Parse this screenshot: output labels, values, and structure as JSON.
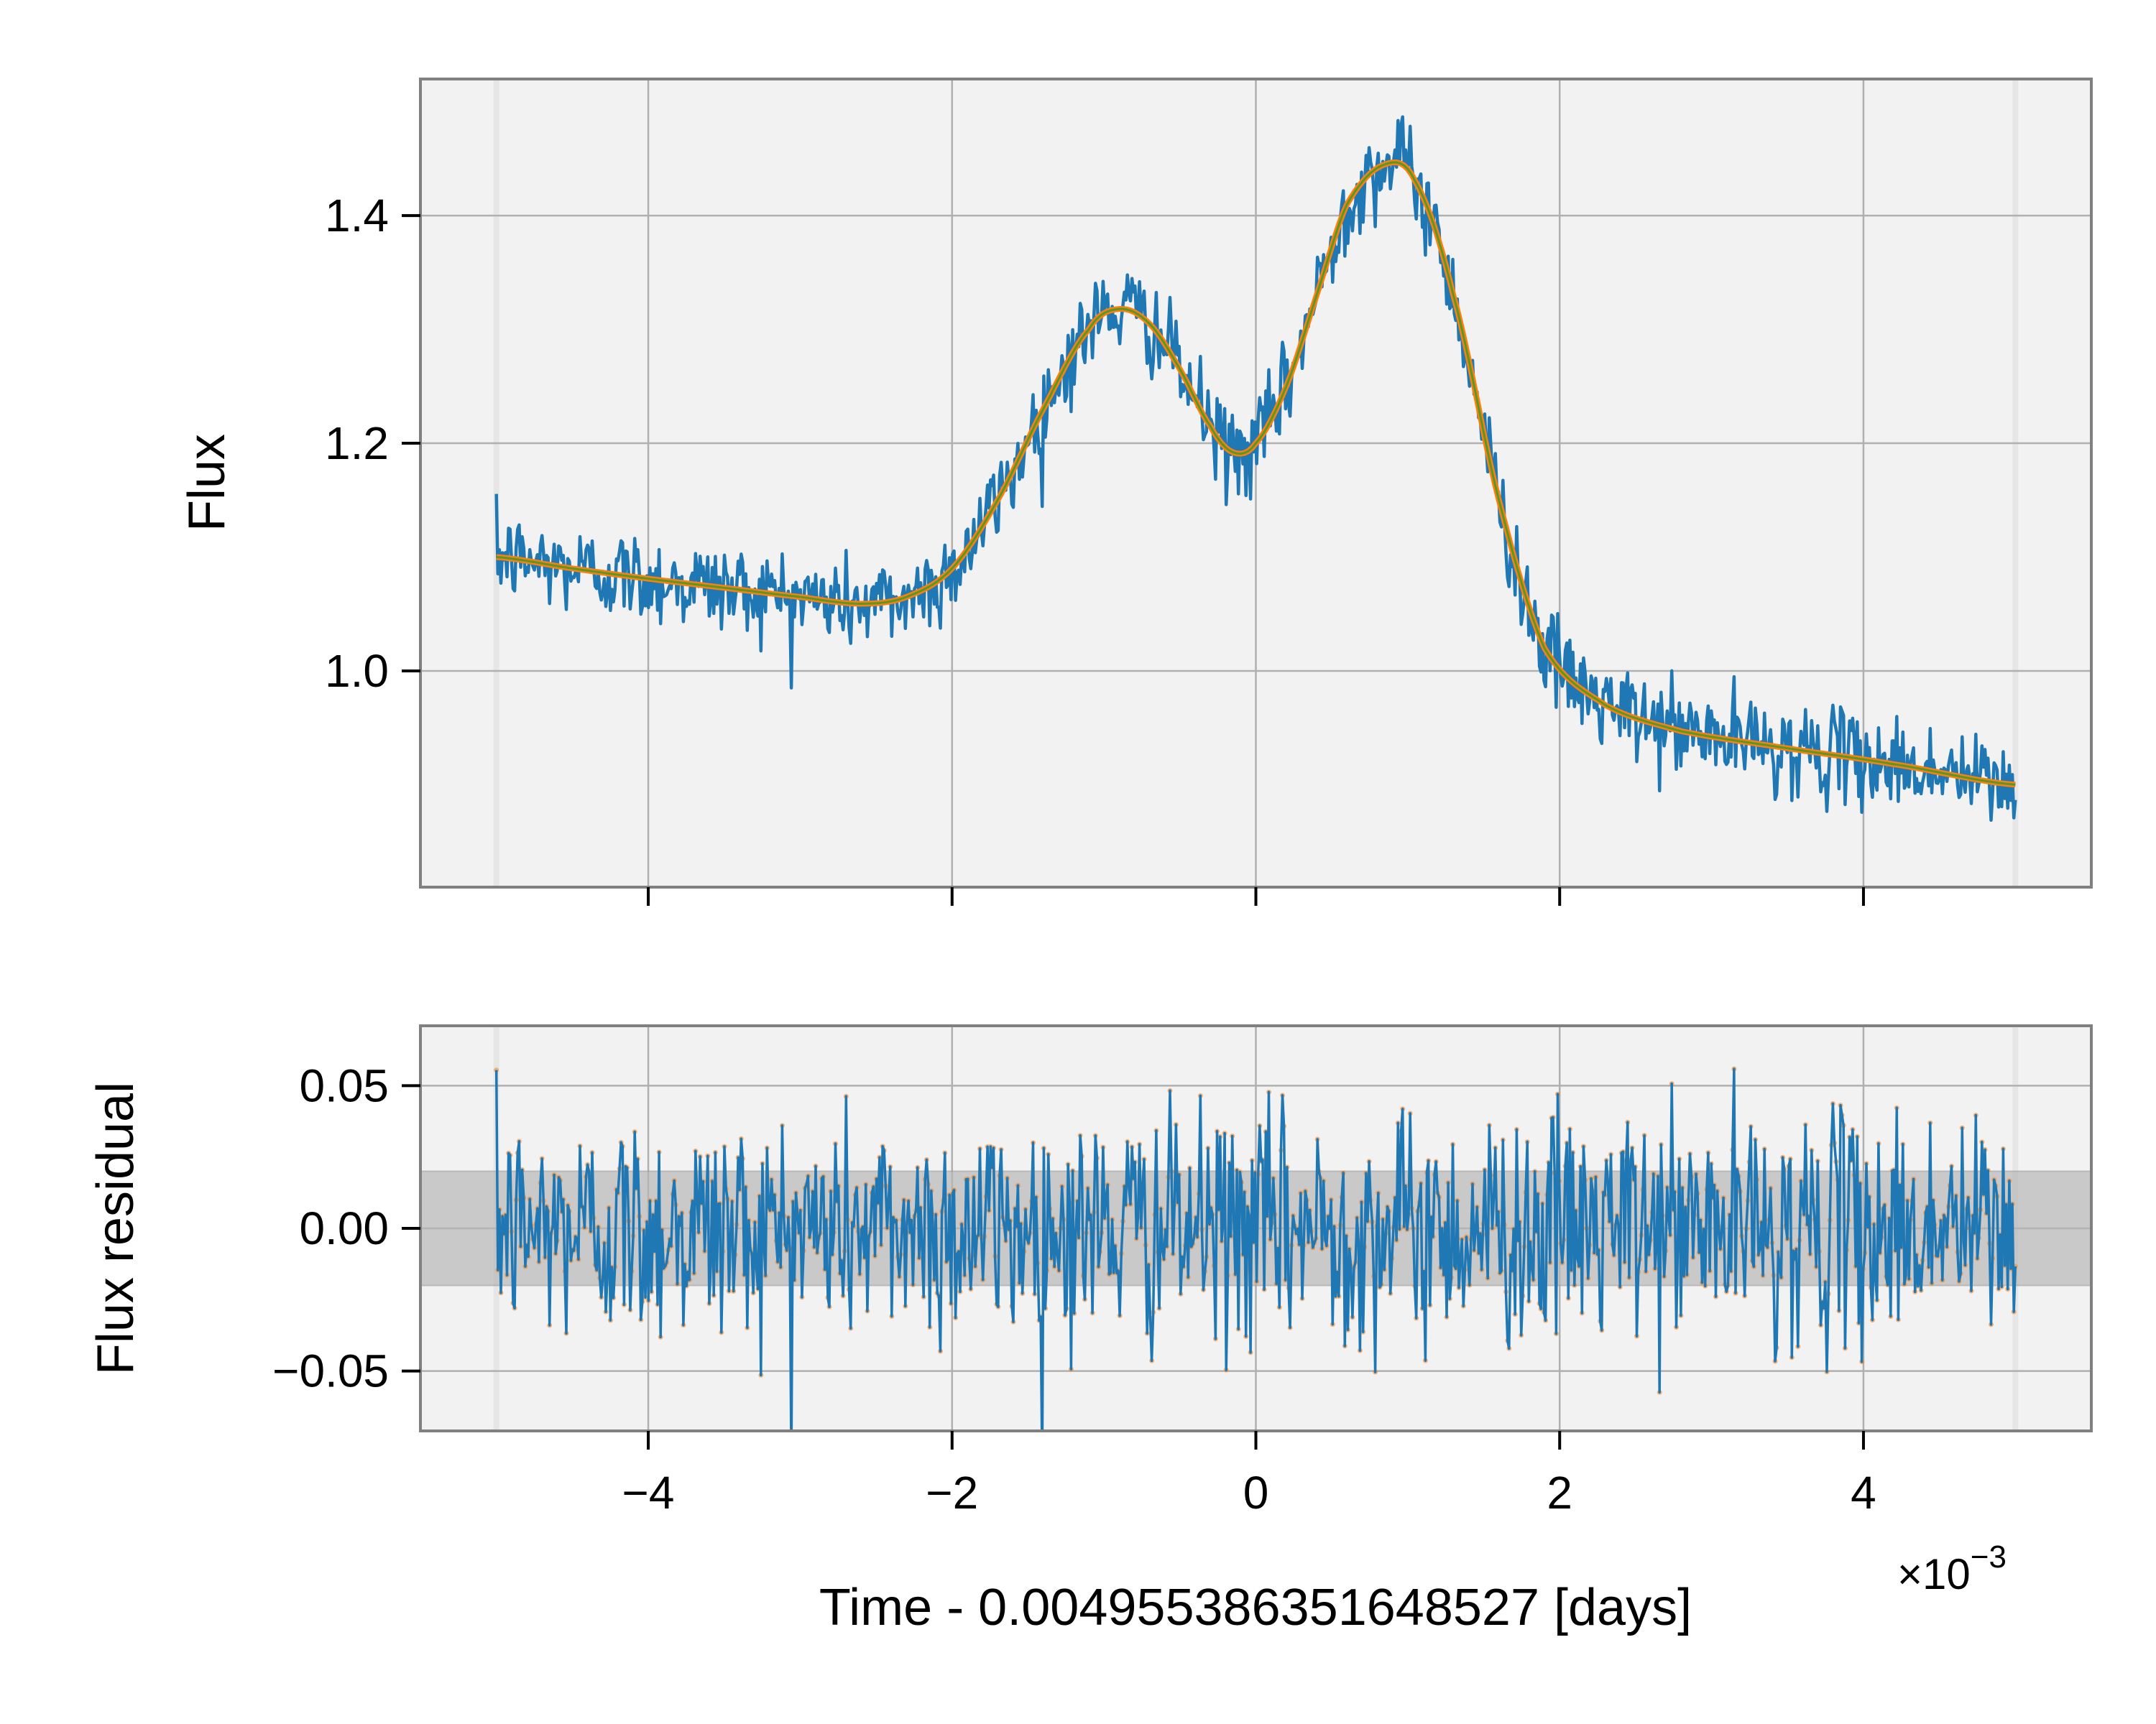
{
  "colors": {
    "figure_bg": "#ffffff",
    "axes_bg": "#f2f2f2",
    "spine": "#808080",
    "grid": "#b0b0b0",
    "data": "#1f77b4",
    "model": "#ff7f0e",
    "model_inner": "#2ca02c",
    "band": "#c9c9c9",
    "edge_band": "#e6e6e6"
  },
  "chart_data": [
    {
      "name": "flux-panel",
      "type": "line",
      "title": "",
      "xlabel": "",
      "ylabel": "Flux",
      "xlim": [
        -5.5,
        5.5
      ],
      "ylim": [
        0.81,
        1.52
      ],
      "x_ticks": [
        -4,
        -2,
        0,
        2,
        4
      ],
      "x_tick_labels_visible": false,
      "y_ticks": [
        1.0,
        1.2,
        1.4
      ],
      "y_tick_labels": [
        "1.0",
        "1.2",
        "1.4"
      ],
      "grid": true,
      "legend": "none",
      "x_range": [
        -5.0,
        5.0
      ],
      "noise_sigma": 0.02,
      "model_points": [
        {
          "x": -5.0,
          "y": 1.1
        },
        {
          "x": -4.5,
          "y": 1.09
        },
        {
          "x": -4.0,
          "y": 1.081
        },
        {
          "x": -3.5,
          "y": 1.073
        },
        {
          "x": -3.0,
          "y": 1.065
        },
        {
          "x": -2.6,
          "y": 1.059
        },
        {
          "x": -2.3,
          "y": 1.065
        },
        {
          "x": -2.0,
          "y": 1.09
        },
        {
          "x": -1.7,
          "y": 1.15
        },
        {
          "x": -1.4,
          "y": 1.23
        },
        {
          "x": -1.1,
          "y": 1.3
        },
        {
          "x": -0.9,
          "y": 1.318
        },
        {
          "x": -0.7,
          "y": 1.305
        },
        {
          "x": -0.5,
          "y": 1.265
        },
        {
          "x": -0.3,
          "y": 1.215
        },
        {
          "x": -0.15,
          "y": 1.192
        },
        {
          "x": 0.0,
          "y": 1.2
        },
        {
          "x": 0.2,
          "y": 1.25
        },
        {
          "x": 0.4,
          "y": 1.33
        },
        {
          "x": 0.6,
          "y": 1.41
        },
        {
          "x": 0.85,
          "y": 1.445
        },
        {
          "x": 1.05,
          "y": 1.43
        },
        {
          "x": 1.3,
          "y": 1.33
        },
        {
          "x": 1.6,
          "y": 1.15
        },
        {
          "x": 1.9,
          "y": 1.02
        },
        {
          "x": 2.3,
          "y": 0.97
        },
        {
          "x": 2.8,
          "y": 0.947
        },
        {
          "x": 3.5,
          "y": 0.932
        },
        {
          "x": 4.2,
          "y": 0.918
        },
        {
          "x": 5.0,
          "y": 0.9
        }
      ],
      "series": [
        {
          "role": "data",
          "color": "#1f77b4"
        },
        {
          "role": "model",
          "color": "#ff7f0e"
        }
      ]
    },
    {
      "name": "residual-panel",
      "type": "line",
      "title": "",
      "xlabel": "Time - 0.004955386351648527 [days]",
      "x_offset_text": "×10",
      "x_offset_exponent": "−3",
      "ylabel": "Flux residual",
      "xlim": [
        -5.5,
        5.5
      ],
      "ylim": [
        -0.071,
        0.071
      ],
      "x_ticks": [
        -4,
        -2,
        0,
        2,
        4
      ],
      "x_tick_labels": [
        "−4",
        "−2",
        "0",
        "2",
        "4"
      ],
      "y_ticks": [
        0.05,
        0.0,
        -0.05
      ],
      "y_tick_labels": [
        "0.05",
        "0.00",
        "−0.05"
      ],
      "grid": true,
      "legend": "none",
      "band": [
        -0.02,
        0.02
      ],
      "x_range": [
        -5.0,
        5.0
      ],
      "noise_sigma": 0.02,
      "series": [
        {
          "role": "residual",
          "color": "#1f77b4"
        },
        {
          "role": "residual-points",
          "color": "#ff7f0e"
        }
      ]
    }
  ]
}
